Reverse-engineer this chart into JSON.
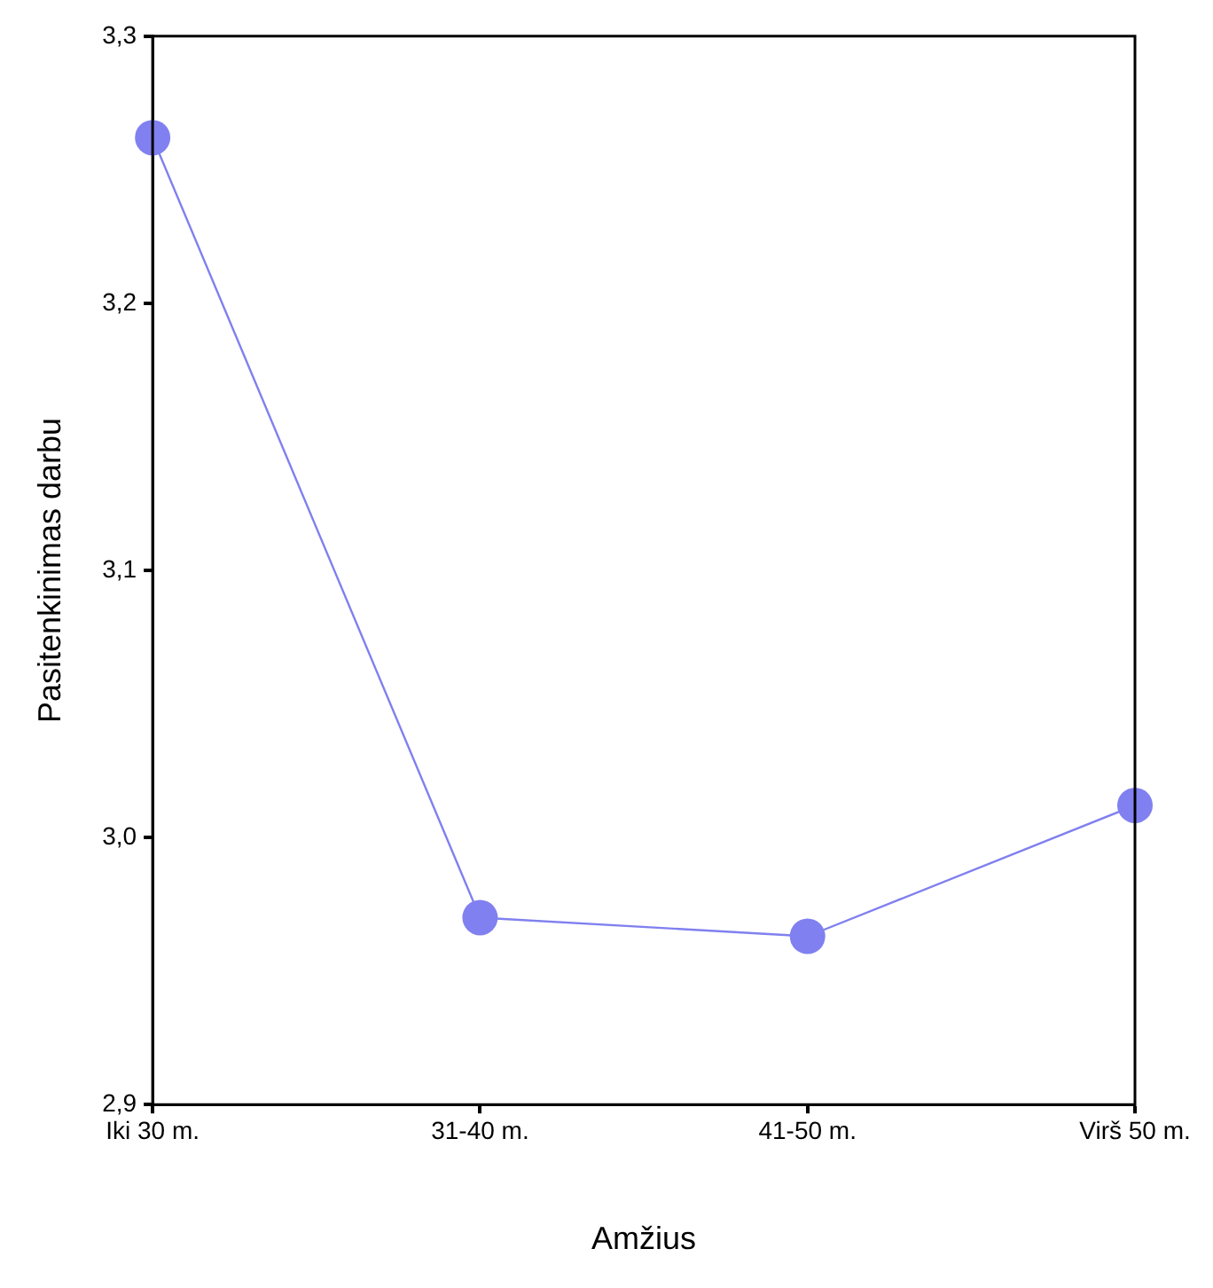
{
  "chart_data": {
    "type": "line",
    "xlabel": "Amžius",
    "ylabel": "Pasitenkinimas darbu",
    "categories": [
      "Iki 30 m.",
      "31-40 m.",
      "41-50 m.",
      "Virš 50 m."
    ],
    "series": [
      {
        "color": "#8080f0",
        "values": [
          3.262,
          2.97,
          2.963,
          3.012
        ]
      }
    ],
    "ylim": [
      2.9,
      3.3
    ],
    "yticks": [
      {
        "value": 2.9,
        "label": "2,9"
      },
      {
        "value": 3.0,
        "label": "3,0"
      },
      {
        "value": 3.1,
        "label": "3,1"
      },
      {
        "value": 3.2,
        "label": "3,2"
      },
      {
        "value": 3.3,
        "label": "3,3"
      }
    ],
    "marker": "circle",
    "line_style": "solid",
    "grid": false,
    "legend": false
  }
}
